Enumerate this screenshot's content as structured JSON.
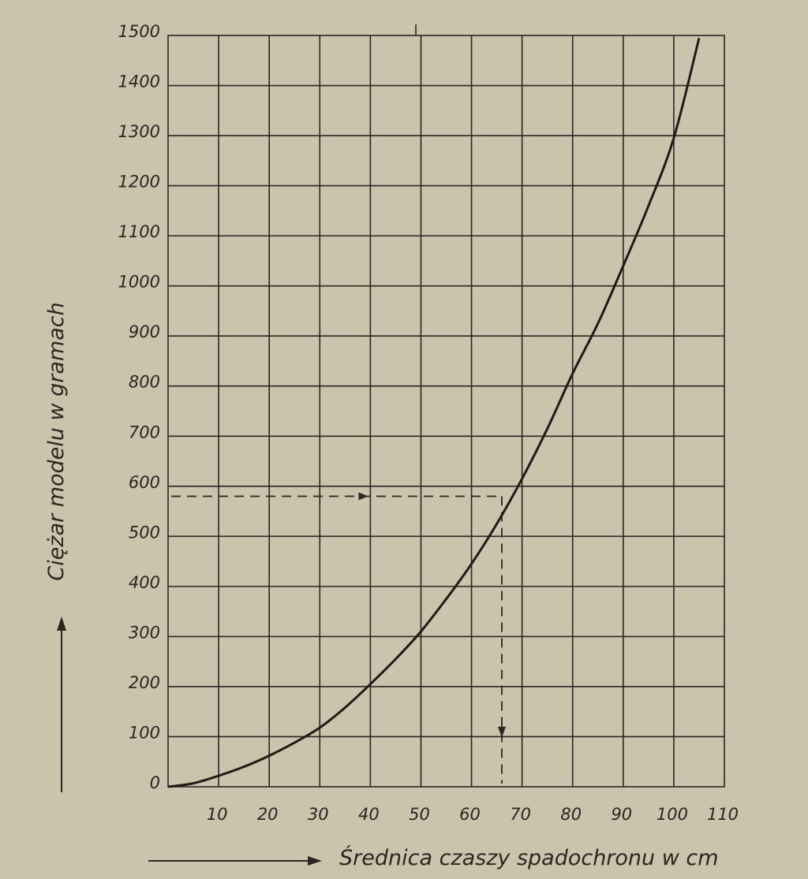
{
  "chart_data": {
    "type": "line",
    "title": "",
    "xlabel": "Średnica czaszy spadochronu w cm",
    "ylabel": "Ciężar modelu w gramach",
    "x_ticks": [
      "10",
      "20",
      "30",
      "40",
      "50",
      "60",
      "70",
      "80",
      "90",
      "100",
      "110"
    ],
    "y_ticks": [
      "0",
      "100",
      "200",
      "300",
      "400",
      "500",
      "600",
      "700",
      "800",
      "900",
      "1000",
      "1100",
      "1200",
      "1300",
      "1400",
      "1500"
    ],
    "xlim": [
      0,
      110
    ],
    "ylim": [
      0,
      1500
    ],
    "grid": true,
    "series": [
      {
        "x": [
          0,
          5,
          10,
          15,
          20,
          25,
          30,
          35,
          40,
          45,
          50,
          55,
          60,
          65,
          70,
          75,
          80,
          85,
          90,
          95,
          100,
          105
        ],
        "y": [
          0,
          7,
          22,
          40,
          62,
          88,
          118,
          158,
          205,
          255,
          310,
          375,
          445,
          525,
          615,
          715,
          825,
          925,
          1040,
          1160,
          1295,
          1495
        ]
      }
    ],
    "guide": {
      "x": 66,
      "y": 580
    }
  }
}
